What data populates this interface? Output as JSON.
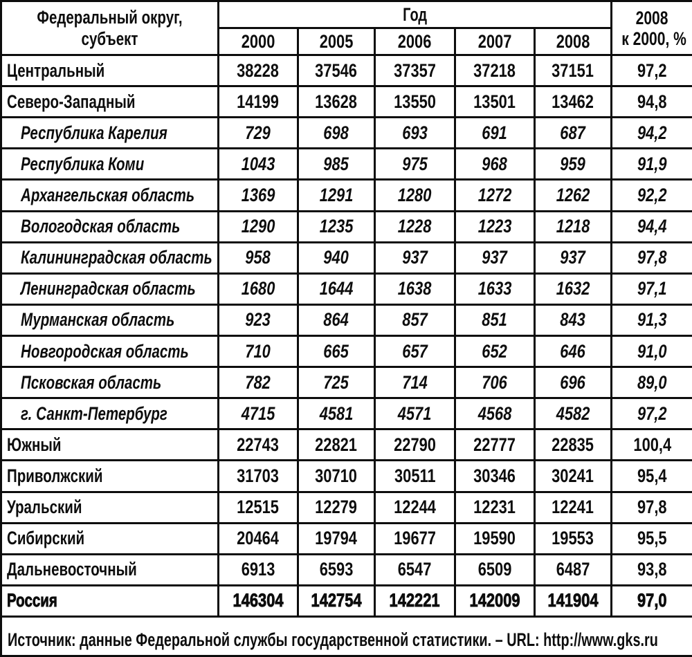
{
  "table": {
    "header": {
      "subject": "Федеральный округ, субъект",
      "year_group": "Год",
      "years": [
        "2000",
        "2005",
        "2006",
        "2007",
        "2008"
      ],
      "ratio_line1": "2008",
      "ratio_line2": "к 2000, %"
    },
    "rows": [
      {
        "label": "Центральный",
        "style": "district",
        "values": [
          "38228",
          "37546",
          "37357",
          "37218",
          "37151"
        ],
        "ratio": "97,2"
      },
      {
        "label": "Северо-Западный",
        "style": "district",
        "values": [
          "14199",
          "13628",
          "13550",
          "13501",
          "13462"
        ],
        "ratio": "94,8"
      },
      {
        "label": "Республика Карелия",
        "style": "region",
        "values": [
          "729",
          "698",
          "693",
          "691",
          "687"
        ],
        "ratio": "94,2"
      },
      {
        "label": "Республика Коми",
        "style": "region",
        "values": [
          "1043",
          "985",
          "975",
          "968",
          "959"
        ],
        "ratio": "91,9"
      },
      {
        "label": "Архангельская область",
        "style": "region",
        "values": [
          "1369",
          "1291",
          "1280",
          "1272",
          "1262"
        ],
        "ratio": "92,2"
      },
      {
        "label": "Вологодская область",
        "style": "region",
        "values": [
          "1290",
          "1235",
          "1228",
          "1223",
          "1218"
        ],
        "ratio": "94,4"
      },
      {
        "label": "Калининградская область",
        "style": "region",
        "values": [
          "958",
          "940",
          "937",
          "937",
          "937"
        ],
        "ratio": "97,8"
      },
      {
        "label": "Ленинградская область",
        "style": "region",
        "values": [
          "1680",
          "1644",
          "1638",
          "1633",
          "1632"
        ],
        "ratio": "97,1"
      },
      {
        "label": "Мурманская область",
        "style": "region",
        "values": [
          "923",
          "864",
          "857",
          "851",
          "843"
        ],
        "ratio": "91,3"
      },
      {
        "label": "Новгородская область",
        "style": "region",
        "values": [
          "710",
          "665",
          "657",
          "652",
          "646"
        ],
        "ratio": "91,0"
      },
      {
        "label": "Псковская область",
        "style": "region",
        "values": [
          "782",
          "725",
          "714",
          "706",
          "696"
        ],
        "ratio": "89,0"
      },
      {
        "label": "г. Санкт-Петербург",
        "style": "region",
        "values": [
          "4715",
          "4581",
          "4571",
          "4568",
          "4582"
        ],
        "ratio": "97,2"
      },
      {
        "label": "Южный",
        "style": "district",
        "values": [
          "22743",
          "22821",
          "22790",
          "22777",
          "22835"
        ],
        "ratio": "100,4"
      },
      {
        "label": "Приволжский",
        "style": "district",
        "values": [
          "31703",
          "30710",
          "30511",
          "30346",
          "30241"
        ],
        "ratio": "95,4"
      },
      {
        "label": "Уральский",
        "style": "district",
        "values": [
          "12515",
          "12279",
          "12244",
          "12231",
          "12241"
        ],
        "ratio": "97,8"
      },
      {
        "label": "Сибирский",
        "style": "district",
        "values": [
          "20464",
          "19794",
          "19677",
          "19590",
          "19553"
        ],
        "ratio": "95,5"
      },
      {
        "label": "Дальневосточный",
        "style": "district",
        "values": [
          "6913",
          "6593",
          "6547",
          "6509",
          "6487"
        ],
        "ratio": "93,8"
      },
      {
        "label": "Россия",
        "style": "total",
        "values": [
          "146304",
          "142754",
          "142221",
          "142009",
          "141904"
        ],
        "ratio": "97,0"
      }
    ],
    "footer": "Источник: данные Федеральной службы государственной статистики. – URL: http://www.gks.ru"
  }
}
